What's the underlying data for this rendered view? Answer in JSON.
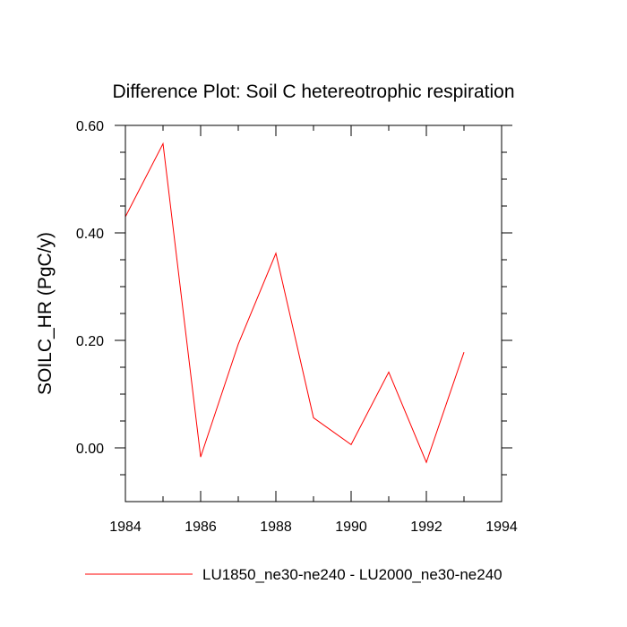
{
  "chart_data": {
    "type": "line",
    "title": "Difference Plot: Soil C hetereotrophic respiration",
    "xlabel": "",
    "ylabel": "SOILC_HR  (PgC/y)",
    "xlim": [
      1984,
      1994
    ],
    "ylim": [
      -0.1,
      0.6
    ],
    "x_ticks": [
      1984,
      1986,
      1988,
      1990,
      1992,
      1994
    ],
    "x_tick_labels": [
      "1984",
      "1986",
      "1988",
      "1990",
      "1992",
      "1994"
    ],
    "y_ticks": [
      0.0,
      0.2,
      0.4,
      0.6
    ],
    "y_tick_labels": [
      "0.00",
      "0.20",
      "0.40",
      "0.60"
    ],
    "grid": false,
    "legend_position": "bottom",
    "series": [
      {
        "name": "LU1850_ne30-ne240 - LU2000_ne30-ne240",
        "color": "#ff0000",
        "x": [
          1984,
          1985,
          1986,
          1987,
          1988,
          1989,
          1990,
          1991,
          1992,
          1993
        ],
        "y": [
          0.43,
          0.566,
          -0.017,
          0.193,
          0.362,
          0.056,
          0.006,
          0.141,
          -0.027,
          0.178
        ]
      }
    ]
  }
}
